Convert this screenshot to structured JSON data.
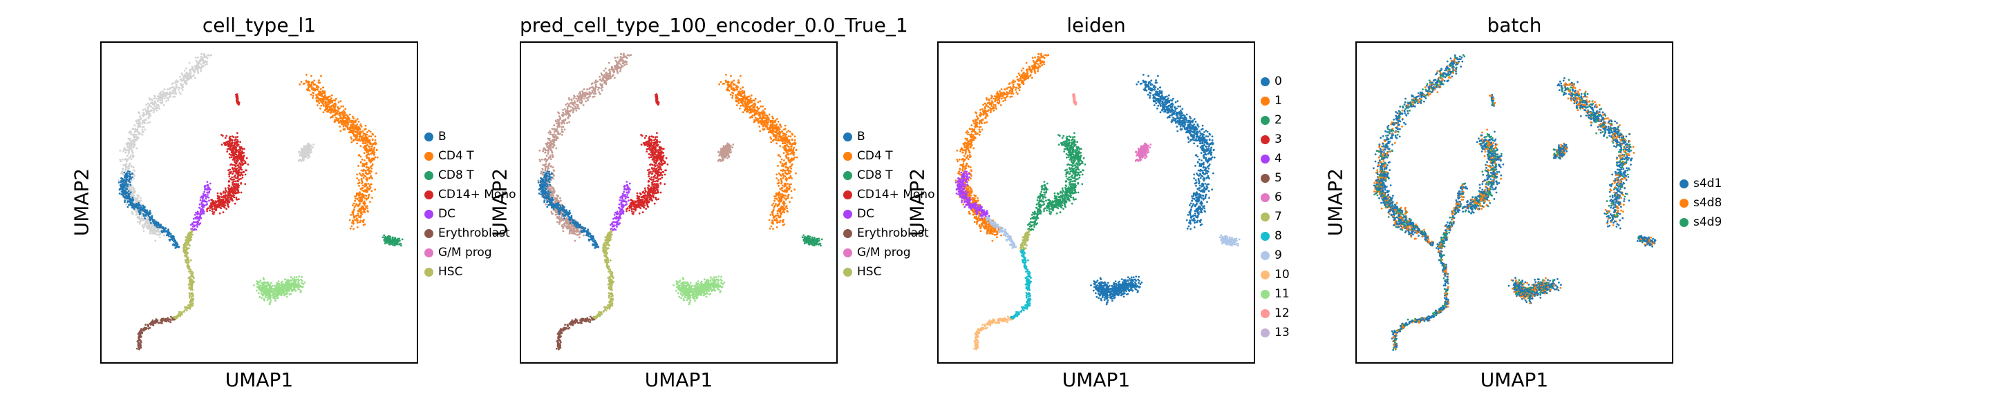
{
  "chart_data": [
    {
      "type": "scatter",
      "title": "cell_type_l1",
      "xlabel": "UMAP1",
      "ylabel": "UMAP2",
      "legend_position": "right",
      "grid": false,
      "categories": [
        "B",
        "CD4 T",
        "CD8 T",
        "CD14+ Mono",
        "DC",
        "Erythroblast",
        "G/M prog",
        "HSC"
      ],
      "colors": [
        "#1f77b4",
        "#ff7f0e",
        "#279e68",
        "#d62728",
        "#aa40fc",
        "#8c564b",
        "#e377c2",
        "#b5bd61"
      ],
      "unlabeled_color": "#d3d3d3"
    },
    {
      "type": "scatter",
      "title": "pred_cell_type_100_encoder_0.0_True_1",
      "xlabel": "UMAP1",
      "ylabel": "UMAP2",
      "legend_position": "right",
      "grid": false,
      "categories": [
        "B",
        "CD4 T",
        "CD8 T",
        "CD14+ Mono",
        "DC",
        "Erythroblast",
        "G/M prog",
        "HSC"
      ],
      "colors": [
        "#1f77b4",
        "#ff7f0e",
        "#279e68",
        "#d62728",
        "#aa40fc",
        "#8c564b",
        "#e377c2",
        "#b5bd61"
      ]
    },
    {
      "type": "scatter",
      "title": "leiden",
      "xlabel": "UMAP1",
      "ylabel": "UMAP2",
      "legend_position": "right",
      "grid": false,
      "categories": [
        "0",
        "1",
        "2",
        "3",
        "4",
        "5",
        "6",
        "7",
        "8",
        "9",
        "10",
        "11",
        "12",
        "13"
      ],
      "colors": [
        "#1f77b4",
        "#ff7f0e",
        "#279e68",
        "#d62728",
        "#aa40fc",
        "#8c564b",
        "#e377c2",
        "#b5bd61",
        "#17becf",
        "#aec7e8",
        "#ffbb78",
        "#98df8a",
        "#ff9896",
        "#c5b0d5"
      ]
    },
    {
      "type": "scatter",
      "title": "batch",
      "xlabel": "UMAP1",
      "ylabel": "UMAP2",
      "legend_position": "right",
      "grid": false,
      "categories": [
        "s4d1",
        "s4d8",
        "s4d9"
      ],
      "colors": [
        "#1f77b4",
        "#ff7f0e",
        "#279e68"
      ]
    }
  ]
}
